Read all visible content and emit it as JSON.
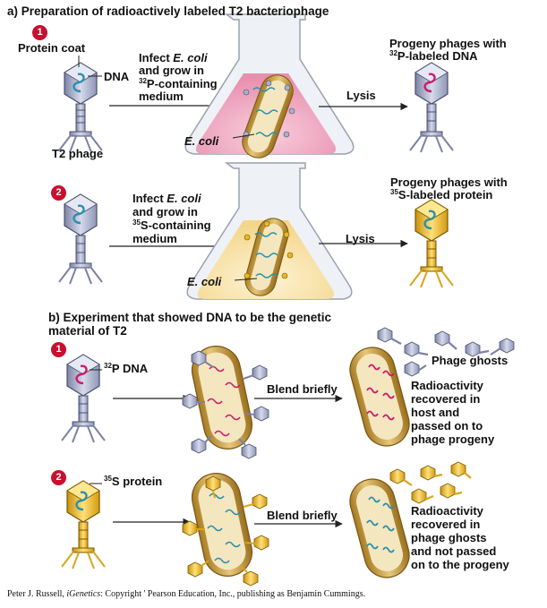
{
  "part_a": {
    "title": "a) Preparation of radioactively labeled T2 bacteriophage",
    "step1": {
      "number": "1",
      "protein_coat": "Protein coat",
      "dna": "DNA",
      "t2_phage": "T2 phage",
      "infect_l1_pre": "Infect ",
      "infect_l1_em": "E. coli",
      "infect_l2": "and grow in",
      "infect_l3_sup": "32",
      "infect_l3": "P-containing",
      "infect_l4": "medium",
      "ecoli": "E. coli",
      "lysis": "Lysis",
      "progeny_l1": "Progeny phages with",
      "progeny_l2_sup": "32",
      "progeny_l2": "P-labeled DNA"
    },
    "step2": {
      "number": "2",
      "infect_l1_pre": "Infect ",
      "infect_l1_em": "E. coli",
      "infect_l2": "and grow in",
      "infect_l3_sup": "35",
      "infect_l3": "S-containing",
      "infect_l4": "medium",
      "ecoli": "E. coli",
      "lysis": "Lysis",
      "progeny_l1": "Progeny phages with",
      "progeny_l2_sup": "35",
      "progeny_l2": "S-labeled protein"
    }
  },
  "part_b": {
    "title_l1": "b) Experiment that showed DNA to be the genetic",
    "title_l2": "material of T2",
    "step1": {
      "number": "1",
      "label_sup": "32",
      "label": "P DNA",
      "blend": "Blend briefly",
      "ghosts": "Phage ghosts",
      "result": [
        "Radioactivity",
        "recovered in",
        "host and",
        "passed on to",
        "phage progeny"
      ]
    },
    "step2": {
      "number": "2",
      "label_sup": "35",
      "label": "S protein",
      "blend": "Blend briefly",
      "result": [
        "Radioactivity",
        "recovered in",
        "phage ghosts",
        "and not passed",
        "on to the progeny"
      ]
    }
  },
  "credit": {
    "author": "Peter J. Russell, ",
    "book": "iGenetics",
    "rest": ": Copyright ' Pearson Education, Inc., publishing as Benjamin Cummings."
  },
  "colors": {
    "number_badge": "#c8102e",
    "phage_gray": "#a9b0cc",
    "phage_gold": "#e9b821",
    "dna_unlabeled": "#2a8fb0",
    "dna_labeled": "#d0186f",
    "bacterium": "#c9a24c",
    "flask_pink": "#f2b3c7",
    "flask_yellow": "#f9e7b4"
  }
}
